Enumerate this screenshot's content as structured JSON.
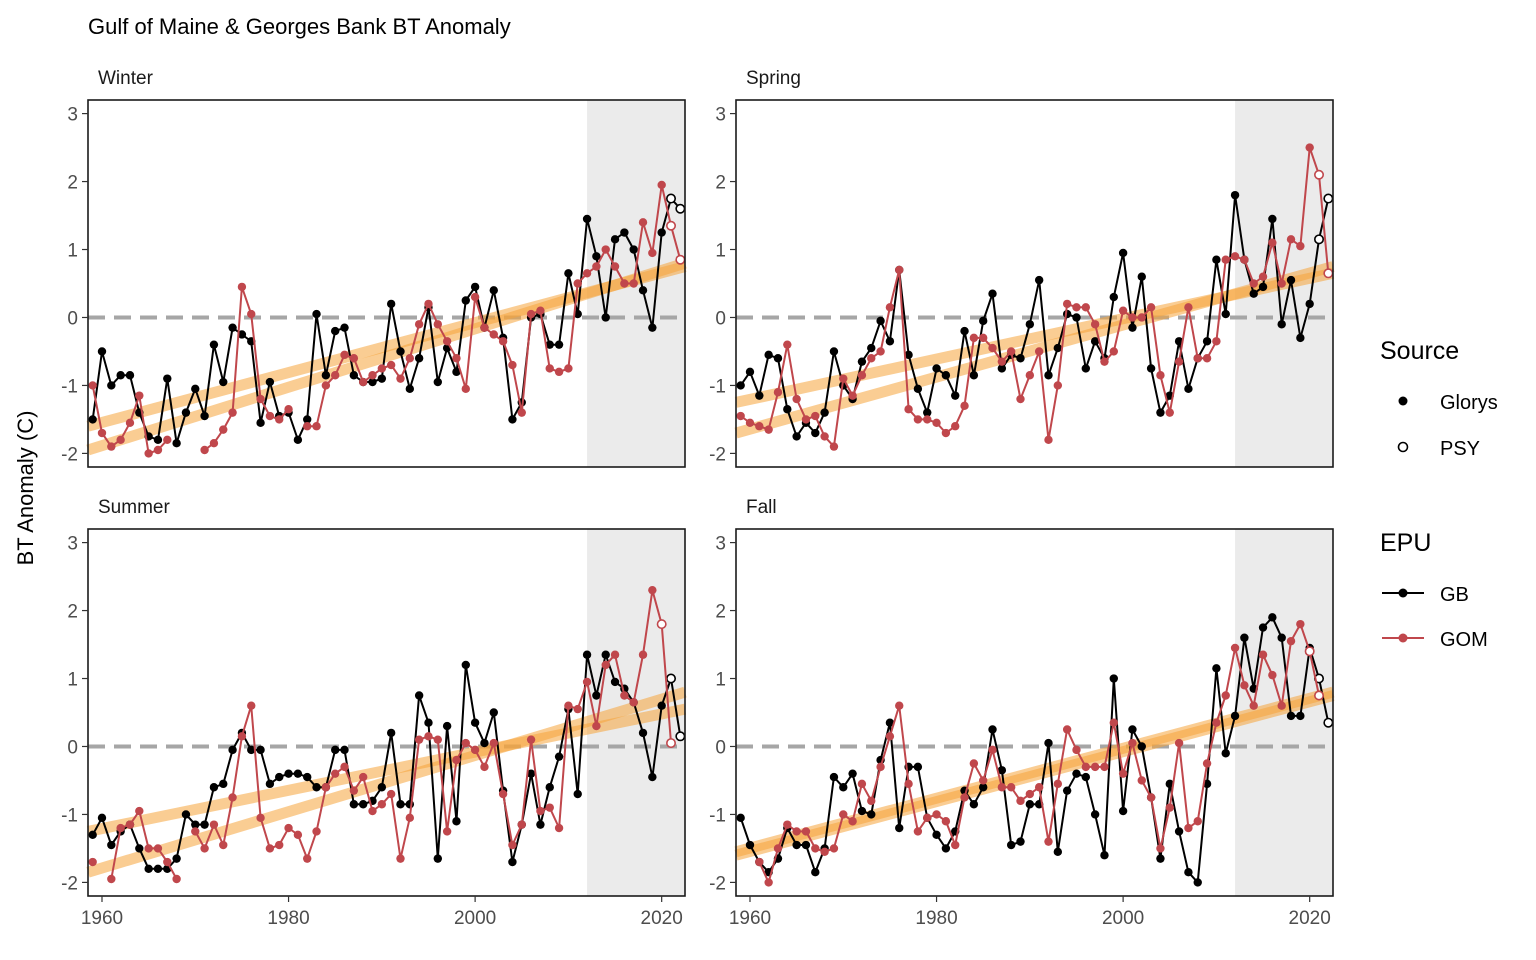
{
  "chart_data": {
    "type": "line",
    "title": "Gulf of Maine & Georges Bank BT Anomaly",
    "ylabel": "BT Anomaly (C)",
    "xlabel": "",
    "xlim": [
      1958.5,
      2022.5
    ],
    "ylim": [
      -2.2,
      3.2
    ],
    "x_ticks": [
      1960,
      1980,
      2000,
      2020
    ],
    "y_ticks": [
      -2,
      -1,
      0,
      1,
      2,
      3
    ],
    "highlight_start": 2012,
    "reference_line": 0,
    "legends": {
      "source": {
        "title": "Source",
        "items": [
          "Glorys",
          "PSY"
        ]
      },
      "epu": {
        "title": "EPU",
        "items": [
          "GB",
          "GOM"
        ]
      }
    },
    "colors": {
      "GB": "#000000",
      "GOM": "#c0474c",
      "trend": "#f5a43a",
      "highlight": "#ebebeb",
      "zero_line": "#a6a6a6"
    },
    "panels": [
      {
        "name": "Winter",
        "series": [
          {
            "name": "GB",
            "x_start": 1959,
            "values": [
              -1.5,
              -0.5,
              -1.0,
              -0.85,
              -0.85,
              -1.4,
              -1.75,
              -1.8,
              -0.9,
              -1.85,
              -1.4,
              -1.05,
              -1.45,
              -0.4,
              -0.95,
              -0.15,
              -0.25,
              -0.35,
              -1.55,
              -0.95,
              -1.45,
              -1.4,
              -1.8,
              -1.5,
              0.05,
              -0.85,
              -0.2,
              -0.15,
              -0.85,
              -0.95,
              -0.95,
              -0.9,
              0.2,
              -0.5,
              -1.05,
              -0.6,
              0.15,
              -0.95,
              -0.45,
              -0.8,
              0.25,
              0.45,
              -0.15,
              0.4,
              -0.3,
              -1.5,
              -1.25,
              0.0,
              0.05,
              -0.4,
              -0.4,
              0.65,
              0.05,
              1.45,
              0.9,
              0.0,
              1.15,
              1.25,
              1.0,
              0.4,
              -0.15,
              1.25,
              1.75,
              1.6
            ],
            "psy_last": 2
          },
          {
            "name": "GOM",
            "x_start": 1959,
            "values": [
              -1.0,
              -1.7,
              -1.9,
              -1.8,
              -1.55,
              -1.15,
              -2.0,
              -1.95,
              -1.8,
              null,
              null,
              null,
              -1.95,
              -1.85,
              -1.65,
              -1.4,
              0.45,
              0.05,
              -1.2,
              -1.45,
              -1.5,
              -1.35,
              null,
              -1.6,
              -1.6,
              -1.0,
              -0.85,
              -0.55,
              -0.6,
              -0.95,
              -0.85,
              -0.75,
              -0.7,
              -0.9,
              -0.6,
              -0.1,
              0.2,
              -0.1,
              -0.35,
              -0.6,
              -1.05,
              0.3,
              -0.15,
              -0.25,
              -0.35,
              -0.7,
              -1.4,
              0.05,
              0.1,
              -0.75,
              -0.8,
              -0.75,
              0.5,
              0.65,
              0.75,
              1.0,
              0.75,
              0.5,
              0.5,
              1.4,
              0.95,
              1.95,
              1.35,
              0.85
            ],
            "psy_last": 2
          }
        ],
        "trends": [
          {
            "epu": "GB",
            "y_start": -1.6,
            "y_end": 0.75
          },
          {
            "epu": "GOM",
            "y_start": -1.95,
            "y_end": 0.8
          }
        ]
      },
      {
        "name": "Spring",
        "series": [
          {
            "name": "GB",
            "x_start": 1959,
            "values": [
              -1.0,
              -0.8,
              -1.15,
              -0.55,
              -0.6,
              -1.35,
              -1.75,
              -1.55,
              -1.7,
              -1.4,
              -0.5,
              -1.0,
              -1.2,
              -0.65,
              -0.45,
              -0.05,
              -0.35,
              0.7,
              -0.55,
              -1.05,
              -1.4,
              -0.75,
              -0.85,
              -1.15,
              -0.2,
              -0.85,
              -0.05,
              0.35,
              -0.75,
              -0.55,
              -0.6,
              -0.1,
              0.55,
              -0.85,
              -0.45,
              0.05,
              0.0,
              -0.75,
              -0.35,
              -0.6,
              0.3,
              0.95,
              -0.15,
              0.6,
              -0.75,
              -1.4,
              -1.15,
              -0.35,
              -1.05,
              -0.6,
              -0.35,
              0.85,
              0.05,
              1.8,
              0.85,
              0.35,
              0.45,
              1.45,
              -0.1,
              0.55,
              -0.3,
              0.2,
              1.15,
              1.75
            ],
            "psy_last": 2
          },
          {
            "name": "GOM",
            "x_start": 1959,
            "values": [
              -1.45,
              -1.55,
              -1.6,
              -1.65,
              -1.1,
              -0.4,
              -1.2,
              -1.5,
              -1.45,
              -1.75,
              -1.9,
              -0.9,
              -1.15,
              -0.85,
              -0.6,
              -0.5,
              0.15,
              0.7,
              -1.35,
              -1.5,
              -1.5,
              -1.55,
              -1.7,
              -1.6,
              -1.3,
              -0.3,
              -0.3,
              -0.45,
              -0.65,
              -0.5,
              -1.2,
              -0.85,
              -0.5,
              -1.8,
              -1.0,
              0.2,
              0.15,
              0.15,
              -0.1,
              -0.65,
              -0.5,
              0.1,
              0.0,
              0.0,
              0.15,
              -0.85,
              -1.4,
              -0.65,
              0.15,
              -0.6,
              -0.6,
              -0.35,
              0.85,
              0.9,
              0.85,
              0.5,
              0.6,
              1.1,
              0.5,
              1.15,
              1.05,
              2.5,
              2.1,
              0.65
            ],
            "psy_last": 2
          }
        ],
        "trends": [
          {
            "epu": "GB",
            "y_start": -1.25,
            "y_end": 0.65
          },
          {
            "epu": "GOM",
            "y_start": -1.7,
            "y_end": 0.75
          }
        ]
      },
      {
        "name": "Summer",
        "series": [
          {
            "name": "GB",
            "x_start": 1959,
            "values": [
              -1.3,
              -1.05,
              -1.45,
              -1.25,
              -1.15,
              -1.5,
              -1.8,
              -1.8,
              -1.8,
              -1.65,
              -1.0,
              -1.15,
              -1.15,
              -0.6,
              -0.55,
              -0.05,
              0.2,
              -0.05,
              -0.05,
              -0.55,
              -0.45,
              -0.4,
              -0.4,
              -0.45,
              -0.6,
              -0.6,
              -0.05,
              -0.05,
              -0.85,
              -0.85,
              -0.8,
              -0.6,
              0.2,
              -0.85,
              -0.85,
              0.75,
              0.35,
              -1.65,
              0.3,
              -1.1,
              1.2,
              0.35,
              0.05,
              0.5,
              -0.65,
              -1.7,
              -1.15,
              -0.4,
              -1.15,
              -0.6,
              -0.15,
              0.55,
              -0.7,
              1.35,
              0.75,
              1.35,
              0.95,
              0.85,
              0.65,
              0.2,
              -0.45,
              0.6,
              1.0,
              0.15
            ],
            "psy_last": 2
          },
          {
            "name": "GOM",
            "x_start": 1959,
            "values": [
              -1.7,
              null,
              -1.95,
              -1.2,
              -1.15,
              -0.95,
              -1.5,
              -1.5,
              -1.7,
              -1.95,
              null,
              -1.25,
              -1.5,
              -1.15,
              -1.45,
              -0.75,
              0.15,
              0.6,
              -1.05,
              -1.5,
              -1.45,
              -1.2,
              -1.3,
              -1.65,
              -1.25,
              -0.6,
              -0.4,
              -0.3,
              -0.65,
              -0.45,
              -0.95,
              -0.85,
              -0.7,
              -1.65,
              -1.05,
              0.1,
              0.15,
              0.1,
              -1.25,
              -0.2,
              0.05,
              -0.05,
              -0.3,
              0.05,
              -0.7,
              -1.45,
              -1.15,
              0.1,
              -0.95,
              -0.9,
              -1.2,
              0.6,
              0.55,
              0.95,
              0.3,
              1.2,
              1.35,
              0.75,
              0.65,
              1.35,
              2.3,
              1.8,
              0.05
            ],
            "psy_last": 2
          }
        ],
        "trends": [
          {
            "epu": "GB",
            "y_start": -1.25,
            "y_end": 0.55
          },
          {
            "epu": "GOM",
            "y_start": -1.85,
            "y_end": 0.8
          }
        ]
      },
      {
        "name": "Fall",
        "series": [
          {
            "name": "GB",
            "x_start": 1959,
            "values": [
              -1.05,
              -1.45,
              -1.7,
              -1.85,
              -1.65,
              -1.2,
              -1.45,
              -1.45,
              -1.85,
              -1.5,
              -0.45,
              -0.6,
              -0.4,
              -0.95,
              -1.0,
              -0.2,
              0.35,
              -1.2,
              -0.3,
              -0.3,
              -1.05,
              -1.3,
              -1.5,
              -1.25,
              -0.65,
              -0.85,
              -0.6,
              0.25,
              -0.35,
              -1.45,
              -1.4,
              -0.85,
              -0.85,
              0.05,
              -1.55,
              -0.65,
              -0.4,
              -0.45,
              -1.0,
              -1.6,
              1.0,
              -0.95,
              0.25,
              0.0,
              -0.75,
              -1.65,
              -0.55,
              -1.25,
              -1.85,
              -2.0,
              -0.55,
              1.15,
              -0.1,
              0.45,
              1.6,
              0.85,
              1.75,
              1.9,
              1.6,
              0.45,
              0.45,
              1.45,
              1.0,
              0.35
            ],
            "psy_last": 2
          },
          {
            "name": "GOM",
            "x_start": 1959,
            "values": [
              null,
              null,
              -1.7,
              -2.0,
              -1.5,
              -1.15,
              -1.25,
              -1.25,
              -1.5,
              -1.55,
              -1.5,
              -1.0,
              -1.1,
              -0.55,
              -0.8,
              -0.3,
              0.15,
              0.6,
              -0.55,
              -1.25,
              -1.05,
              -1.0,
              -1.1,
              -1.45,
              -0.75,
              -0.25,
              -0.5,
              -0.05,
              -0.6,
              -0.6,
              -0.8,
              -0.7,
              -0.6,
              -1.4,
              -0.55,
              0.25,
              -0.05,
              -0.3,
              -0.3,
              -0.3,
              0.35,
              -0.4,
              0.05,
              -0.5,
              -0.75,
              -1.5,
              -0.9,
              0.05,
              -1.2,
              -1.1,
              -0.25,
              0.35,
              0.75,
              1.45,
              0.9,
              0.6,
              1.35,
              1.05,
              0.6,
              1.55,
              1.8,
              1.4,
              0.75
            ],
            "psy_last": 2
          }
        ],
        "trends": [
          {
            "epu": "GB",
            "y_start": -1.55,
            "y_end": 0.8
          },
          {
            "epu": "GOM",
            "y_start": -1.6,
            "y_end": 0.75
          }
        ]
      }
    ]
  }
}
